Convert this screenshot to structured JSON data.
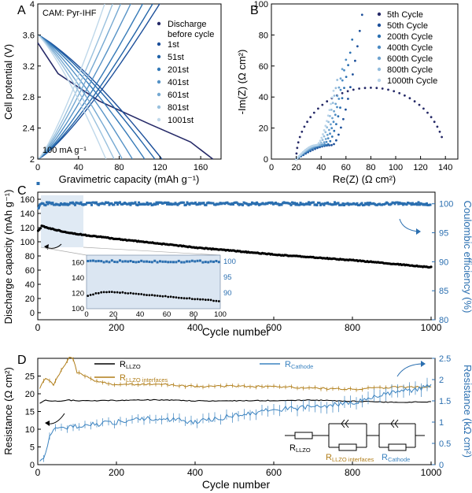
{
  "chart_data": [
    {
      "panel": "A",
      "type": "line",
      "title": "",
      "annotation_top": "CAM: Pyr-IHF",
      "annotation_bottom": "100 mA g⁻¹",
      "xlabel": "Gravimetric capacity (mAh g⁻¹)",
      "ylabel": "Cell potential (V)",
      "xlim": [
        0,
        180
      ],
      "ylim": [
        2,
        4
      ],
      "xticks": [
        0,
        40,
        80,
        120,
        160
      ],
      "yticks": [
        2,
        2.4,
        2.8,
        3.2,
        3.6,
        4
      ],
      "legend": [
        "Discharge before cycle",
        "1st",
        "51st",
        "201st",
        "401st",
        "601st",
        "801st",
        "1001st"
      ],
      "series": [
        {
          "name": "Discharge before cycle",
          "color": "#262a68",
          "discharge": [
            [
              0,
              3.5
            ],
            [
              20,
              3.1
            ],
            [
              60,
              2.75
            ],
            [
              110,
              2.45
            ],
            [
              150,
              2.22
            ],
            [
              172,
              2.0
            ]
          ]
        },
        {
          "name": "1st",
          "color": "#1c4f9a",
          "capacity": 122
        },
        {
          "name": "51st",
          "color": "#2163a8",
          "capacity": 115
        },
        {
          "name": "201st",
          "color": "#3479b7",
          "capacity": 105
        },
        {
          "name": "401st",
          "color": "#5592c6",
          "capacity": 93
        },
        {
          "name": "601st",
          "color": "#76a9d2",
          "capacity": 83
        },
        {
          "name": "801st",
          "color": "#9ac1de",
          "capacity": 75
        },
        {
          "name": "1001st",
          "color": "#bfd8ea",
          "capacity": 67
        }
      ]
    },
    {
      "panel": "B",
      "type": "scatter",
      "xlabel": "Re(Z) (Ω cm²)",
      "ylabel": "-Im(Z) (Ω cm²)",
      "xlim": [
        0,
        150
      ],
      "ylim": [
        0,
        100
      ],
      "xticks": [
        0,
        20,
        40,
        60,
        80,
        100,
        120,
        140
      ],
      "yticks": [
        0,
        20,
        40,
        60,
        80,
        100
      ],
      "legend": [
        "5th Cycle",
        "50th Cycle",
        "200th Cycle",
        "400th Cycle",
        "600th Cycle",
        "800th Cycle",
        "1000th Cycle"
      ],
      "series": [
        {
          "name": "5th Cycle",
          "color": "#262a68",
          "arc": {
            "r0": 20,
            "r1": 140,
            "peak": 46
          }
        },
        {
          "name": "50th Cycle",
          "color": "#1c4f9a",
          "x_end": 73,
          "y_end": 93
        },
        {
          "name": "200th Cycle",
          "color": "#2b6fb0",
          "x_end": 65,
          "y_end": 77
        },
        {
          "name": "400th Cycle",
          "color": "#4b8ac3",
          "x_end": 60,
          "y_end": 64
        },
        {
          "name": "600th Cycle",
          "color": "#6ea3cf",
          "x_end": 57,
          "y_end": 58
        },
        {
          "name": "800th Cycle",
          "color": "#93bcdc",
          "x_end": 53,
          "y_end": 51
        },
        {
          "name": "1000th Cycle",
          "color": "#b9d4e9",
          "x_end": 50,
          "y_end": 44
        }
      ]
    },
    {
      "panel": "C",
      "type": "scatter",
      "xlabel": "Cycle number",
      "ylabel_left": "Discharge capacity (mAh g⁻¹)",
      "ylabel_right": "Coulombic efficiency (%)",
      "xlim": [
        0,
        1010
      ],
      "ylim_left": [
        -10,
        170
      ],
      "ylim_right": [
        80,
        102
      ],
      "xticks": [
        0,
        200,
        400,
        600,
        800,
        1000
      ],
      "yticks_left": [
        0,
        20,
        40,
        60,
        80,
        100,
        120,
        140,
        160
      ],
      "yticks_right": [
        80,
        85,
        90,
        95,
        100
      ],
      "capacity": {
        "x": [
          1,
          10,
          30,
          60,
          100,
          200,
          300,
          400,
          500,
          600,
          700,
          800,
          900,
          1000
        ],
        "y": [
          115,
          122,
          119,
          115,
          111,
          104,
          98,
          92,
          87,
          82,
          78,
          74,
          69,
          64
        ]
      },
      "efficiency": {
        "value": 100,
        "first_cycle": 103.5,
        "first_cycles": [
          99.2,
          99.4,
          99.6
        ]
      },
      "inset": {
        "xlim": [
          0,
          100
        ],
        "xticks": [
          0,
          20,
          40,
          60,
          80,
          100
        ],
        "ylim_left": [
          100,
          170
        ],
        "yticks_left": [
          100,
          120,
          140,
          160
        ],
        "yticks_right": [
          90,
          95,
          100
        ],
        "capacity": {
          "x": [
            1,
            10,
            20,
            40,
            60,
            80,
            100
          ],
          "y": [
            117,
            121,
            122,
            119,
            116,
            113,
            110
          ]
        }
      }
    },
    {
      "panel": "D",
      "type": "line",
      "xlabel": "Cycle number",
      "ylabel_left": "Resistance (Ω cm²)",
      "ylabel_right": "Resistance (kΩ cm²)",
      "xlim": [
        0,
        1010
      ],
      "ylim_left": [
        0,
        30
      ],
      "ylim_right": [
        0,
        2.5
      ],
      "xticks": [
        0,
        200,
        400,
        600,
        800,
        1000
      ],
      "yticks_left": [
        0,
        5,
        10,
        15,
        20,
        25
      ],
      "yticks_right": [
        0,
        0.5,
        1.0,
        1.5,
        2.0,
        2.5
      ],
      "legend": [
        {
          "name": "R",
          "sub": "LLZO",
          "color": "#000000"
        },
        {
          "name": "R",
          "sub": "LLZO interfaces",
          "color": "#b07d18"
        },
        {
          "name": "R",
          "sub": "Cathode",
          "color": "#3b83c0"
        }
      ],
      "series": [
        {
          "name": "R_LLZO",
          "axis": "left",
          "x": [
            5,
            20,
            40,
            60,
            80,
            100,
            200,
            300,
            400,
            500,
            600,
            700,
            800,
            900,
            1000
          ],
          "y": [
            17.2,
            18.2,
            17.9,
            18.0,
            18.2,
            18.0,
            18.1,
            18.3,
            18.0,
            18.0,
            18.1,
            18.2,
            17.9,
            17.6,
            17.7
          ]
        },
        {
          "name": "R_LLZO interfaces",
          "axis": "left",
          "x": [
            5,
            20,
            40,
            60,
            80,
            90,
            100,
            150,
            200,
            300,
            400,
            500,
            600,
            700,
            800,
            900,
            1000
          ],
          "y": [
            21.5,
            24.5,
            22.5,
            26.5,
            30.2,
            29.8,
            26.0,
            23.5,
            22.5,
            22.8,
            22.0,
            22.2,
            22.0,
            21.6,
            21.3,
            21.8,
            22.0
          ]
        },
        {
          "name": "R_Cathode",
          "axis": "right",
          "x": [
            5,
            20,
            30,
            50,
            100,
            200,
            300,
            400,
            500,
            600,
            700,
            800,
            850,
            900,
            950,
            1000
          ],
          "y": [
            0.05,
            0.25,
            0.7,
            0.85,
            0.9,
            1.0,
            1.1,
            1.0,
            1.15,
            1.3,
            1.35,
            1.45,
            1.6,
            1.7,
            1.75,
            1.85
          ]
        }
      ],
      "circuit_labels": [
        {
          "name": "R",
          "sub": "LLZO",
          "color": "#000000"
        },
        {
          "name": "R",
          "sub": "LLZO interfaces",
          "color": "#b07d18"
        },
        {
          "name": "R",
          "sub": "Cathode",
          "color": "#3b83c0"
        }
      ]
    }
  ]
}
